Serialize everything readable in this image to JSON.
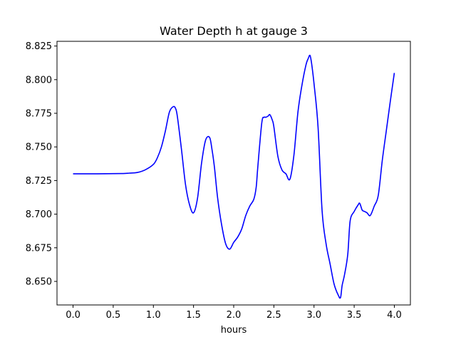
{
  "chart_data": {
    "type": "line",
    "title": "Water Depth h at gauge 3",
    "xlabel": "hours",
    "ylabel": "",
    "xlim": [
      -0.2,
      4.2
    ],
    "ylim": [
      8.6325,
      8.8285
    ],
    "grid": false,
    "xticks": [
      0.0,
      0.5,
      1.0,
      1.5,
      2.0,
      2.5,
      3.0,
      3.5,
      4.0
    ],
    "xtick_labels": [
      "0.0",
      "0.5",
      "1.0",
      "1.5",
      "2.0",
      "2.5",
      "3.0",
      "3.5",
      "4.0"
    ],
    "yticks": [
      8.65,
      8.675,
      8.7,
      8.725,
      8.75,
      8.775,
      8.8,
      8.825
    ],
    "ytick_labels": [
      "8.650",
      "8.675",
      "8.700",
      "8.725",
      "8.750",
      "8.775",
      "8.800",
      "8.825"
    ],
    "series": [
      {
        "color": "#0000ff",
        "x": [
          0.0,
          0.3,
          0.6,
          0.7,
          0.8,
          0.9,
          1.0,
          1.05,
          1.1,
          1.15,
          1.2,
          1.25,
          1.28,
          1.3,
          1.35,
          1.4,
          1.45,
          1.5,
          1.55,
          1.6,
          1.65,
          1.7,
          1.73,
          1.76,
          1.8,
          1.85,
          1.9,
          1.95,
          2.0,
          2.05,
          2.1,
          2.15,
          2.2,
          2.25,
          2.28,
          2.3,
          2.35,
          2.38,
          2.4,
          2.43,
          2.45,
          2.48,
          2.5,
          2.55,
          2.6,
          2.65,
          2.7,
          2.75,
          2.8,
          2.85,
          2.9,
          2.93,
          2.95,
          2.97,
          3.0,
          3.05,
          3.1,
          3.15,
          3.2,
          3.25,
          3.3,
          3.33,
          3.35,
          3.38,
          3.42,
          3.45,
          3.5,
          3.55,
          3.57,
          3.6,
          3.63,
          3.66,
          3.7,
          3.75,
          3.8,
          3.85,
          3.9,
          3.95,
          4.0
        ],
        "y": [
          8.73,
          8.73,
          8.7302,
          8.7305,
          8.731,
          8.733,
          8.737,
          8.742,
          8.75,
          8.762,
          8.776,
          8.78,
          8.778,
          8.772,
          8.748,
          8.722,
          8.707,
          8.701,
          8.712,
          8.738,
          8.755,
          8.757,
          8.748,
          8.735,
          8.712,
          8.692,
          8.678,
          8.674,
          8.679,
          8.683,
          8.689,
          8.699,
          8.706,
          8.711,
          8.72,
          8.735,
          8.768,
          8.772,
          8.772,
          8.773,
          8.774,
          8.77,
          8.765,
          8.743,
          8.733,
          8.73,
          8.726,
          8.744,
          8.776,
          8.796,
          8.811,
          8.816,
          8.818,
          8.812,
          8.797,
          8.765,
          8.703,
          8.678,
          8.663,
          8.648,
          8.64,
          8.638,
          8.647,
          8.655,
          8.67,
          8.695,
          8.702,
          8.707,
          8.708,
          8.703,
          8.702,
          8.701,
          8.699,
          8.706,
          8.714,
          8.74,
          8.762,
          8.784,
          8.805
        ]
      }
    ]
  }
}
